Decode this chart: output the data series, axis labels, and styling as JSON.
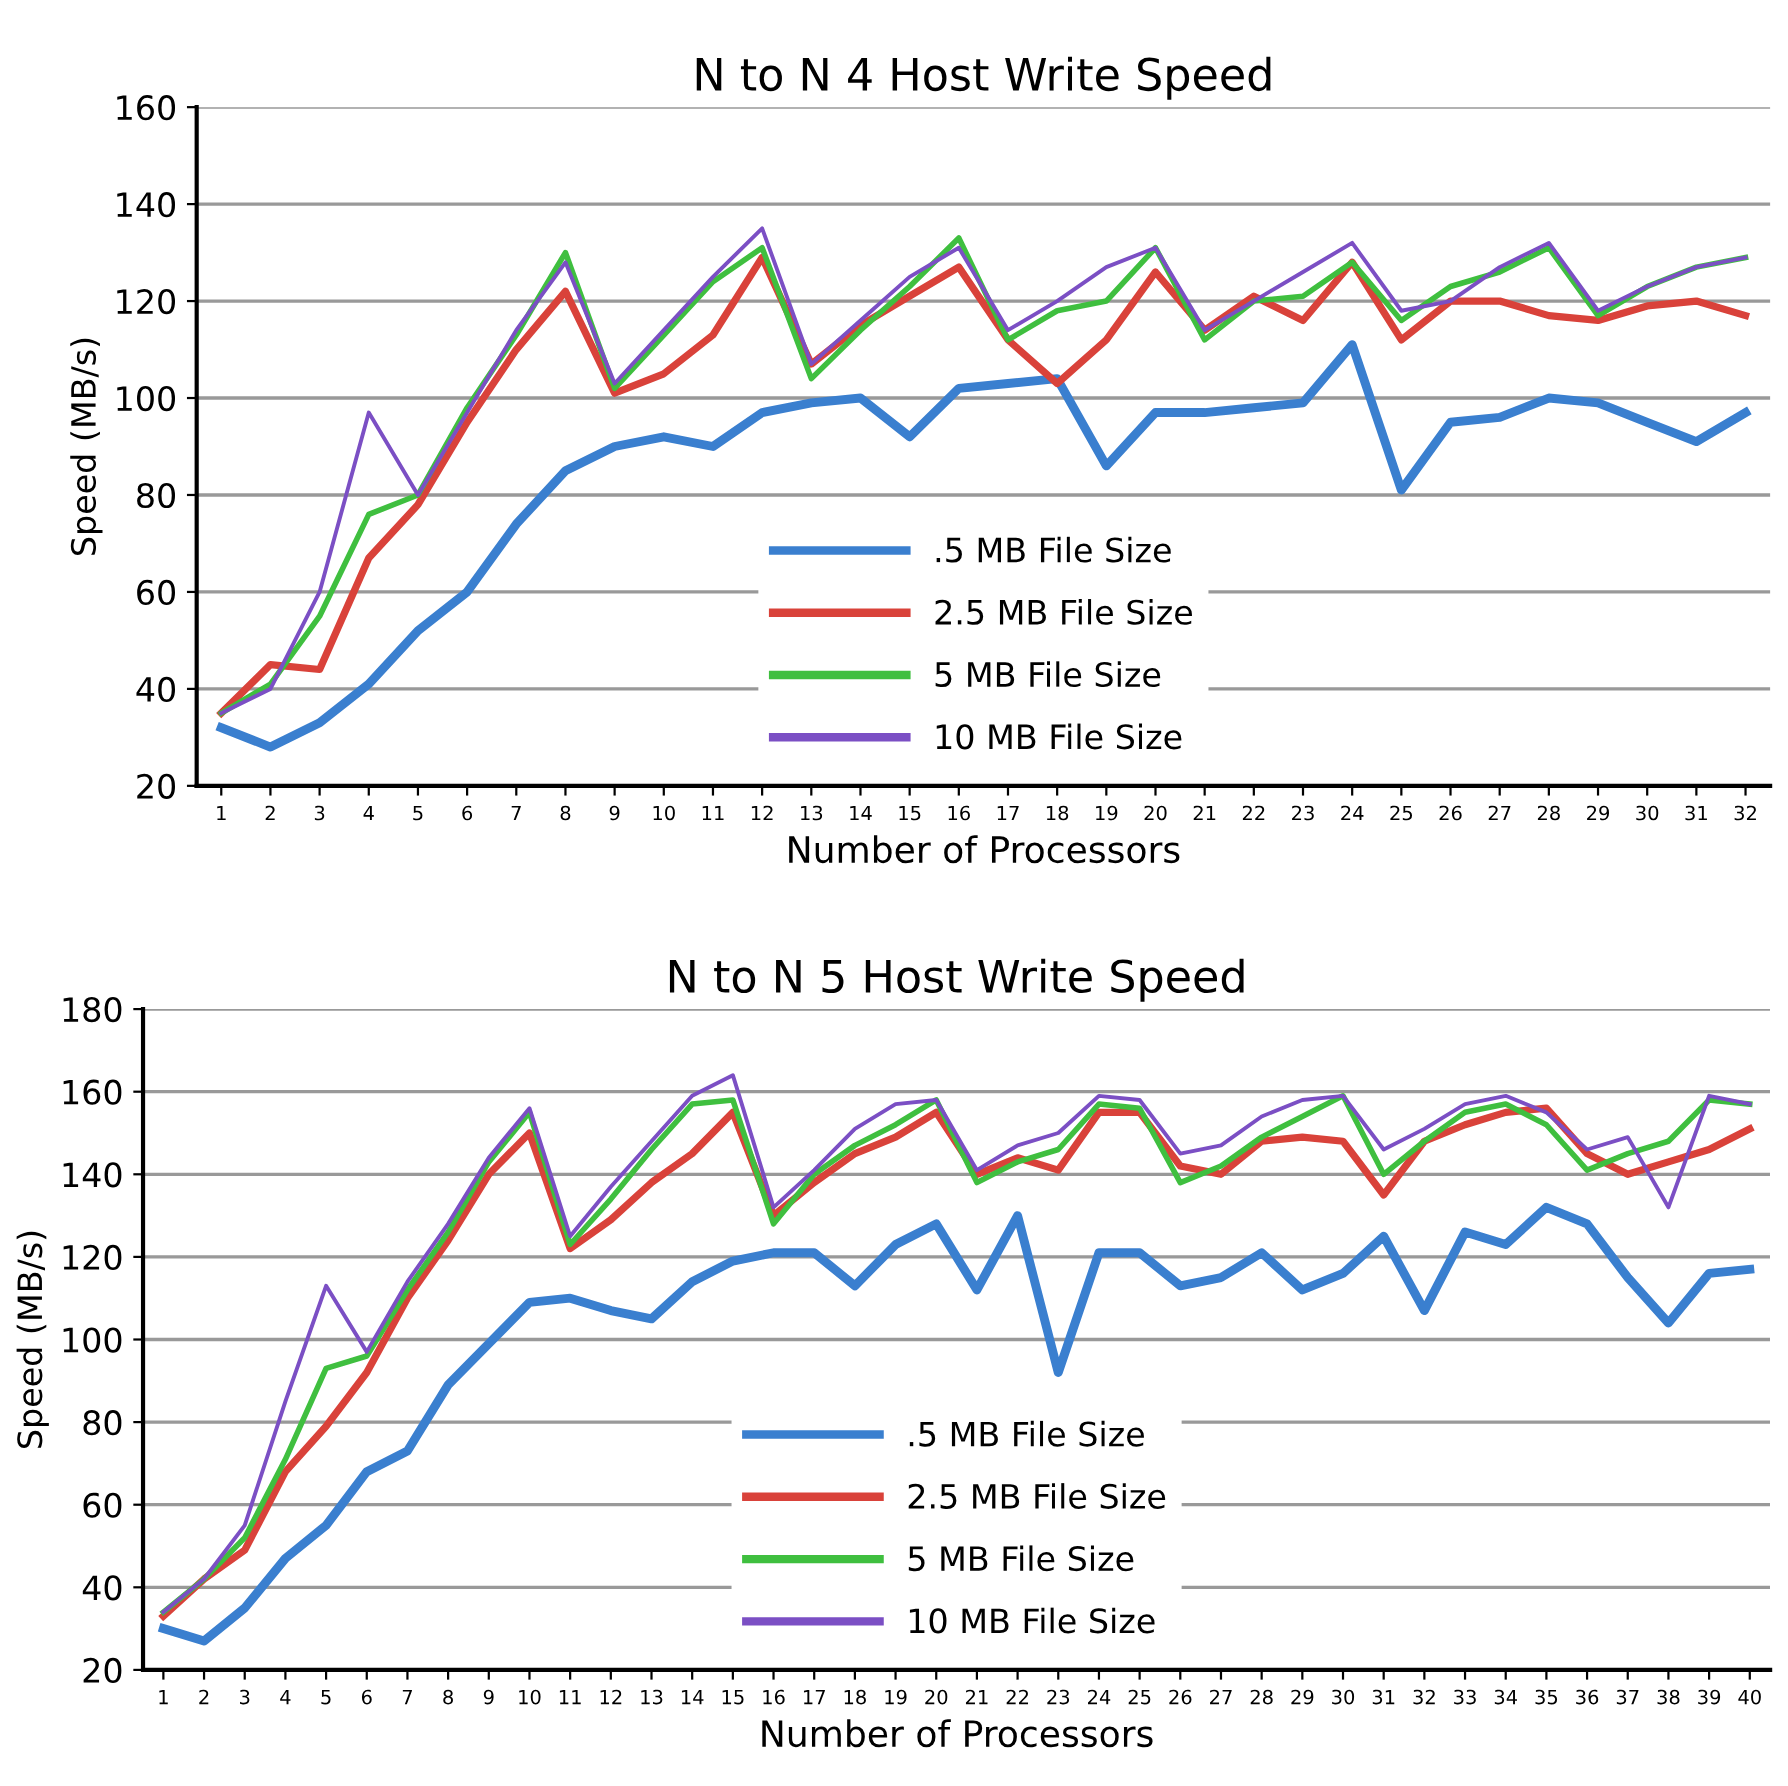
{
  "chart_data": [
    {
      "type": "line",
      "title": "N to N 4 Host Write Speed",
      "xlabel": "Number of Processors",
      "ylabel": "Speed (MB/s)",
      "categories": [
        "1",
        "2",
        "3",
        "4",
        "5",
        "6",
        "7",
        "8",
        "9",
        "10",
        "11",
        "12",
        "13",
        "14",
        "15",
        "16",
        "17",
        "18",
        "19",
        "20",
        "21",
        "22",
        "23",
        "24",
        "25",
        "26",
        "27",
        "28",
        "29",
        "30",
        "31",
        "32"
      ],
      "ylim": [
        20,
        160
      ],
      "yticks": [
        20,
        40,
        60,
        80,
        100,
        120,
        140,
        160
      ],
      "grid": "y",
      "legend": "bottom",
      "marker": "none",
      "line_style": "solid",
      "series": [
        {
          "name": ".5 MB File Size",
          "color": "#3a7fcf",
          "values": [
            32,
            28,
            33,
            41,
            52,
            60,
            74,
            85,
            90,
            92,
            90,
            97,
            99,
            100,
            92,
            102,
            103,
            104,
            86,
            97,
            97,
            98,
            99,
            111,
            81,
            95,
            96,
            100,
            99,
            95,
            91,
            97
          ]
        },
        {
          "name": "2.5 MB File Size",
          "color": "#d9423a",
          "values": [
            35,
            45,
            44,
            67,
            78,
            95,
            110,
            122,
            101,
            105,
            113,
            129,
            107,
            115,
            121,
            127,
            112,
            103,
            112,
            126,
            114,
            121,
            116,
            128,
            112,
            120,
            120,
            117,
            116,
            119,
            120,
            117
          ]
        },
        {
          "name": "5 MB File Size",
          "color": "#3fbf3f",
          "values": [
            35,
            41,
            55,
            76,
            80,
            98,
            113,
            130,
            102,
            113,
            124,
            131,
            104,
            114,
            123,
            133,
            112,
            118,
            120,
            131,
            112,
            120,
            121,
            128,
            116,
            123,
            126,
            131,
            117,
            123,
            127,
            129
          ]
        },
        {
          "name": "10 MB File Size",
          "color": "#7b4fc4",
          "values": [
            35,
            40,
            60,
            97,
            80,
            97,
            114,
            128,
            103,
            114,
            125,
            135,
            107,
            116,
            125,
            131,
            114,
            120,
            127,
            131,
            114,
            120,
            126,
            132,
            118,
            120,
            127,
            132,
            118,
            123,
            127,
            129
          ]
        }
      ]
    },
    {
      "type": "line",
      "title": "N to N 5 Host Write Speed",
      "xlabel": "Number of Processors",
      "ylabel": "Speed (MB/s)",
      "categories": [
        "1",
        "2",
        "3",
        "4",
        "5",
        "6",
        "7",
        "8",
        "9",
        "10",
        "11",
        "12",
        "13",
        "14",
        "15",
        "16",
        "17",
        "18",
        "19",
        "20",
        "21",
        "22",
        "23",
        "24",
        "25",
        "26",
        "27",
        "28",
        "29",
        "30",
        "31",
        "32",
        "33",
        "34",
        "35",
        "36",
        "37",
        "38",
        "39",
        "40"
      ],
      "ylim": [
        20,
        180
      ],
      "yticks": [
        20,
        40,
        60,
        80,
        100,
        120,
        140,
        160,
        180
      ],
      "grid": "y",
      "legend": "bottom",
      "marker": "none",
      "line_style": "solid",
      "series": [
        {
          "name": ".5 MB File Size",
          "color": "#3a7fcf",
          "values": [
            30,
            27,
            35,
            47,
            55,
            68,
            73,
            89,
            99,
            109,
            110,
            107,
            105,
            114,
            119,
            121,
            121,
            113,
            123,
            128,
            112,
            130,
            92,
            121,
            121,
            113,
            115,
            121,
            112,
            116,
            125,
            107,
            126,
            123,
            132,
            128,
            115,
            104,
            116,
            117
          ]
        },
        {
          "name": "2.5 MB File Size",
          "color": "#d9423a",
          "values": [
            33,
            42,
            49,
            68,
            79,
            92,
            110,
            124,
            140,
            150,
            122,
            129,
            138,
            145,
            155,
            130,
            138,
            145,
            149,
            155,
            140,
            144,
            141,
            155,
            155,
            142,
            140,
            148,
            149,
            148,
            135,
            148,
            152,
            155,
            156,
            145,
            140,
            143,
            146,
            151
          ]
        },
        {
          "name": "5 MB File Size",
          "color": "#3fbf3f",
          "values": [
            34,
            42,
            52,
            71,
            93,
            96,
            112,
            126,
            143,
            155,
            123,
            134,
            146,
            157,
            158,
            128,
            140,
            147,
            152,
            158,
            138,
            143,
            146,
            157,
            156,
            138,
            142,
            149,
            154,
            159,
            140,
            148,
            155,
            157,
            152,
            141,
            145,
            148,
            158,
            157
          ]
        },
        {
          "name": "10 MB File Size",
          "color": "#7b4fc4",
          "values": [
            34,
            42,
            55,
            85,
            113,
            97,
            114,
            128,
            144,
            156,
            125,
            137,
            148,
            159,
            164,
            132,
            141,
            151,
            157,
            158,
            141,
            147,
            150,
            159,
            158,
            145,
            147,
            154,
            158,
            159,
            146,
            151,
            157,
            159,
            155,
            146,
            149,
            132,
            159,
            157
          ]
        }
      ]
    }
  ]
}
